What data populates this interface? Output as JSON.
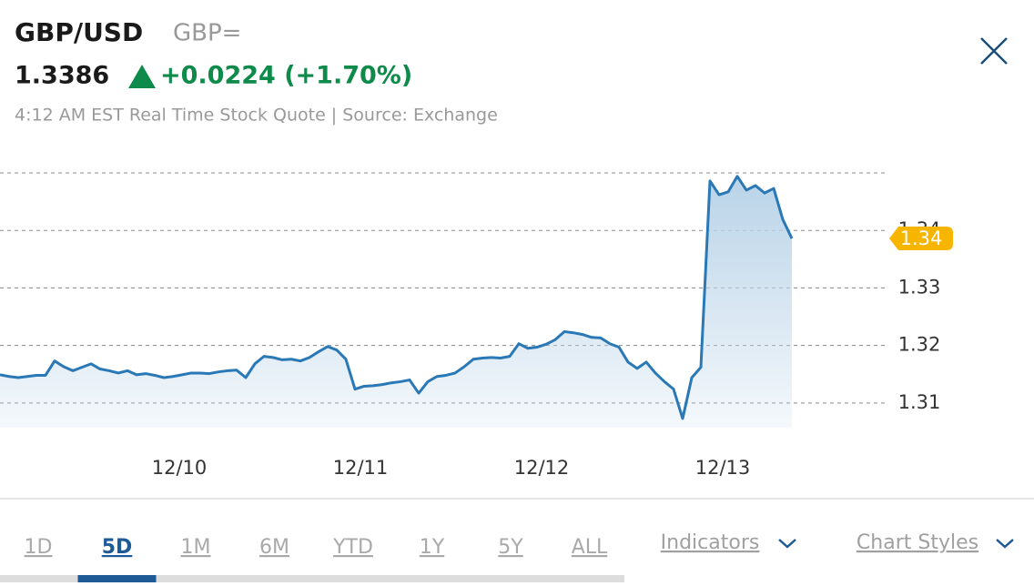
{
  "header": {
    "symbol": "GBP/USD",
    "code": "GBP=",
    "price": "1.3386",
    "change": "+0.0224 (+1.70%)",
    "quote_info": "4:12 AM EST Real Time Stock Quote | Source: Exchange"
  },
  "chart_data": {
    "type": "line",
    "color": "#2a78b5",
    "xticks": [
      "12/10",
      "12/11",
      "12/12",
      "12/13"
    ],
    "values": [
      1.3149,
      1.3146,
      1.3144,
      1.3146,
      1.3148,
      1.3148,
      1.3173,
      1.3163,
      1.3156,
      1.3162,
      1.3168,
      1.3159,
      1.3156,
      1.3152,
      1.3156,
      1.3149,
      1.3151,
      1.3148,
      1.3144,
      1.3146,
      1.3149,
      1.3152,
      1.3152,
      1.3151,
      1.3154,
      1.3156,
      1.3157,
      1.3144,
      1.3168,
      1.3181,
      1.3179,
      1.3175,
      1.3176,
      1.3173,
      1.3179,
      1.3189,
      1.3198,
      1.3192,
      1.3176,
      1.3124,
      1.3129,
      1.313,
      1.3132,
      1.3135,
      1.3137,
      1.314,
      1.3117,
      1.3137,
      1.3146,
      1.3148,
      1.3152,
      1.3163,
      1.3176,
      1.3178,
      1.3179,
      1.3178,
      1.3181,
      1.3203,
      1.3195,
      1.3197,
      1.3202,
      1.321,
      1.3224,
      1.3222,
      1.3219,
      1.3214,
      1.3213,
      1.3203,
      1.3197,
      1.3171,
      1.316,
      1.3171,
      1.3152,
      1.3137,
      1.3124,
      1.3073,
      1.3144,
      1.3162,
      1.3486,
      1.3462,
      1.3467,
      1.3494,
      1.347,
      1.3478,
      1.3465,
      1.3473,
      1.3419,
      1.3386
    ],
    "last_value_label": "1.34",
    "ylim": [
      1.3057,
      1.35
    ],
    "yticks": [
      1.31,
      1.32,
      1.33,
      1.34
    ],
    "grid": true
  },
  "tabs": [
    "1D",
    "5D",
    "1M",
    "6M",
    "YTD",
    "1Y",
    "5Y",
    "ALL"
  ],
  "active_tab": 1,
  "menus": [
    "Indicators",
    "Chart Styles"
  ]
}
